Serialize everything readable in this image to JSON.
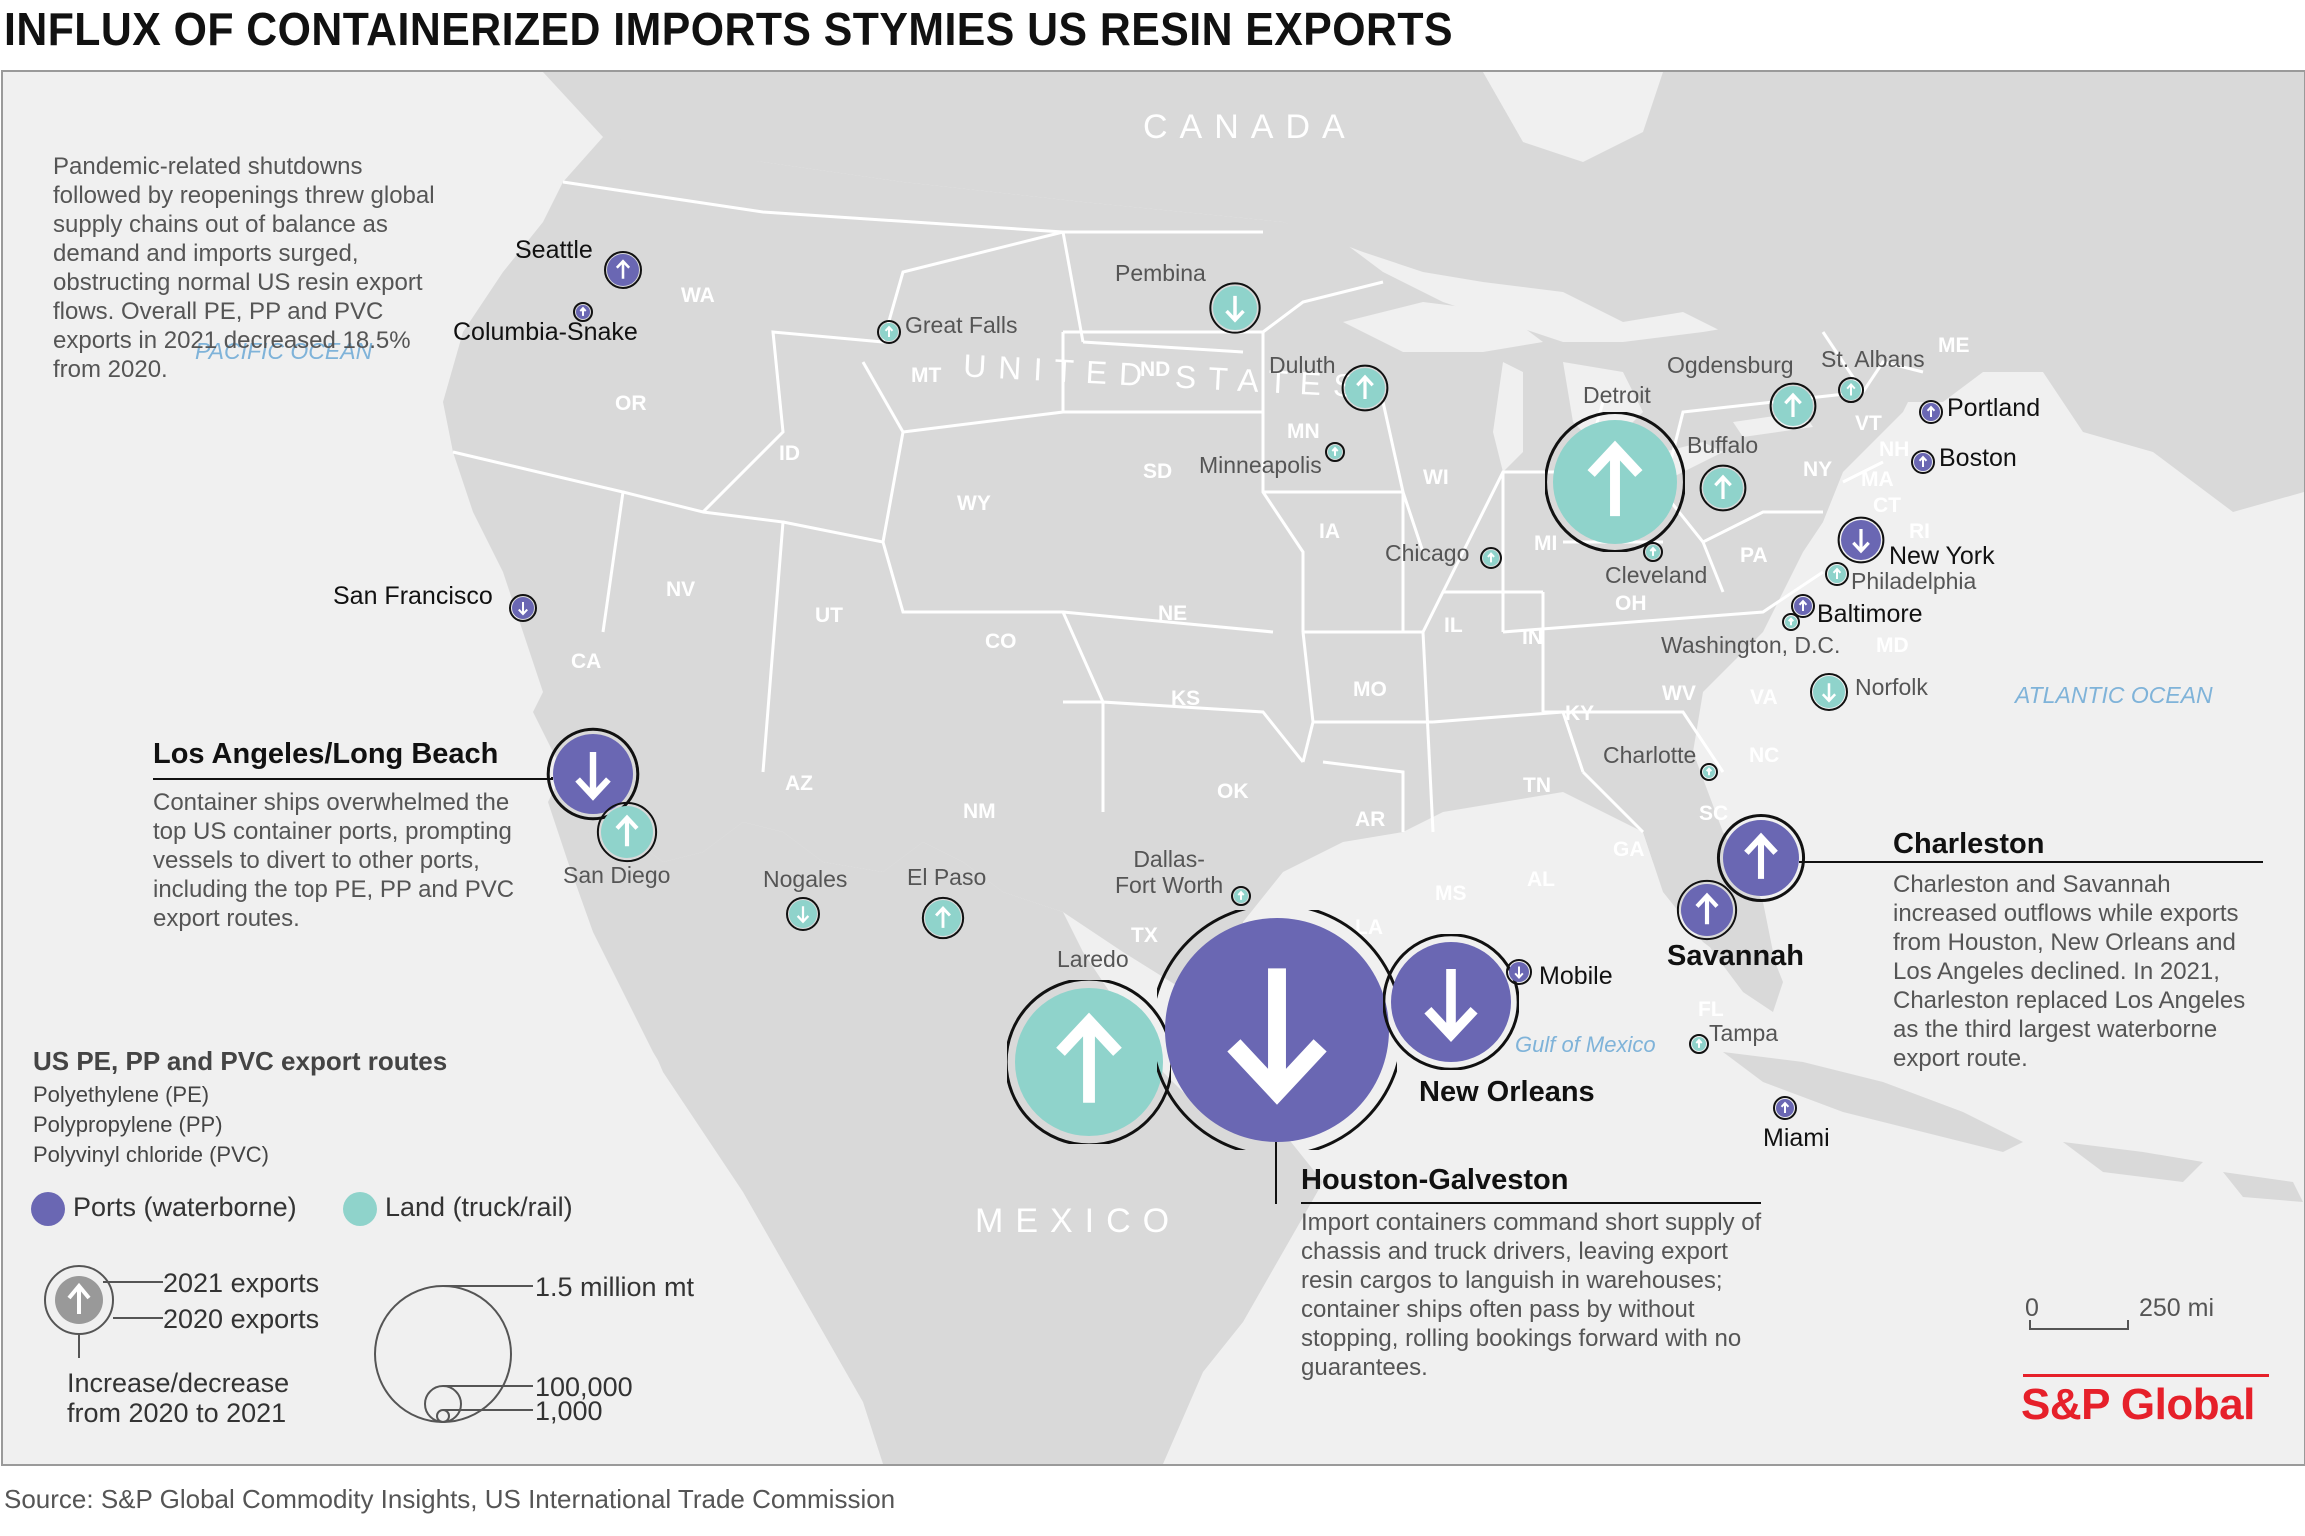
{
  "title": "INFLUX OF CONTAINERIZED IMPORTS STYMIES US RESIN EXPORTS",
  "source": "Source: S&P Global Commodity Insights, US International Trade Commission",
  "intro": "Pandemic-related shutdowns followed by reopenings threw global supply chains out of balance as demand and imports surged, obstructing normal US resin export flows. Overall PE, PP and PVC exports in 2021 decreased 18.5% from 2020.",
  "geo_labels": {
    "canada": "CANADA",
    "us": "UNITED STATES",
    "mexico": "MEXICO"
  },
  "oceans": {
    "pacific": "PACIFIC OCEAN",
    "atlantic": "ATLANTIC OCEAN",
    "gulf": "Gulf of Mexico"
  },
  "states": [
    "WA",
    "OR",
    "CA",
    "ID",
    "NV",
    "UT",
    "AZ",
    "MT",
    "WY",
    "CO",
    "NM",
    "ND",
    "SD",
    "NE",
    "KS",
    "OK",
    "TX",
    "MN",
    "IA",
    "MO",
    "AR",
    "LA",
    "WI",
    "IL",
    "MI",
    "IN",
    "OH",
    "KY",
    "TN",
    "MS",
    "AL",
    "GA",
    "FL",
    "SC",
    "NC",
    "VA",
    "WV",
    "PA",
    "NY",
    "ME",
    "VT",
    "NH",
    "MA",
    "CT",
    "RI",
    "MD"
  ],
  "callouts": {
    "la": {
      "title": "Los Angeles/Long Beach",
      "text": "Container ships overwhelmed the top US container ports, prompting vessels to divert to other ports, including the top PE, PP and PVC export routes."
    },
    "houston": {
      "title": "Houston-Galveston",
      "text": "Import containers command short supply of chassis and truck drivers, leaving export resin cargos to languish in warehouses; container ships often pass by without stopping, rolling bookings forward with no guarantees."
    },
    "charleston": {
      "title": "Charleston",
      "text": "Charleston and Savannah increased outflows while exports from Houston, New Orleans and Los Angeles declined. In 2021, Charleston replaced Los Angeles as the third largest waterborne export route."
    }
  },
  "routes": [
    {
      "name": "Seattle",
      "type": "port",
      "direction": "up"
    },
    {
      "name": "Columbia-Snake",
      "type": "port",
      "direction": "up"
    },
    {
      "name": "San Francisco",
      "type": "port",
      "direction": "down"
    },
    {
      "name": "Los Angeles/Long Beach",
      "type": "port",
      "direction": "down"
    },
    {
      "name": "San Diego",
      "type": "land",
      "direction": "up"
    },
    {
      "name": "Nogales",
      "type": "land",
      "direction": "down"
    },
    {
      "name": "El Paso",
      "type": "land",
      "direction": "up"
    },
    {
      "name": "Laredo",
      "type": "land",
      "direction": "up"
    },
    {
      "name": "Dallas-Fort Worth",
      "type": "land",
      "direction": "up"
    },
    {
      "name": "Houston-Galveston",
      "type": "port",
      "direction": "down"
    },
    {
      "name": "New Orleans",
      "type": "port",
      "direction": "down"
    },
    {
      "name": "Mobile",
      "type": "port",
      "direction": "down"
    },
    {
      "name": "Tampa",
      "type": "land",
      "direction": "up"
    },
    {
      "name": "Miami",
      "type": "port",
      "direction": "up"
    },
    {
      "name": "Savannah",
      "type": "port",
      "direction": "up"
    },
    {
      "name": "Charleston",
      "type": "port",
      "direction": "up"
    },
    {
      "name": "Charlotte",
      "type": "land",
      "direction": "up"
    },
    {
      "name": "Norfolk",
      "type": "land",
      "direction": "down"
    },
    {
      "name": "Washington, D.C.",
      "type": "land",
      "direction": "up"
    },
    {
      "name": "Baltimore",
      "type": "port",
      "direction": "up"
    },
    {
      "name": "Philadelphia",
      "type": "land",
      "direction": "up"
    },
    {
      "name": "New York",
      "type": "port",
      "direction": "down"
    },
    {
      "name": "Boston",
      "type": "port",
      "direction": "up"
    },
    {
      "name": "Portland",
      "type": "port",
      "direction": "up"
    },
    {
      "name": "St. Albans",
      "type": "land",
      "direction": "up"
    },
    {
      "name": "Ogdensburg",
      "type": "land",
      "direction": "up"
    },
    {
      "name": "Buffalo",
      "type": "land",
      "direction": "up"
    },
    {
      "name": "Detroit",
      "type": "land",
      "direction": "up"
    },
    {
      "name": "Cleveland",
      "type": "land",
      "direction": "up"
    },
    {
      "name": "Chicago",
      "type": "land",
      "direction": "up"
    },
    {
      "name": "Duluth",
      "type": "land",
      "direction": "up"
    },
    {
      "name": "Minneapolis",
      "type": "land",
      "direction": "up"
    },
    {
      "name": "Pembina",
      "type": "land",
      "direction": "down"
    },
    {
      "name": "Great Falls",
      "type": "land",
      "direction": "up"
    }
  ],
  "legend": {
    "title": "US PE, PP and PVC export routes",
    "items": [
      "Polyethylene (PE)",
      "Polypropylene (PP)",
      "Polyvinyl chloride (PVC)"
    ],
    "ports": "Ports (waterborne)",
    "land": "Land (truck/rail)",
    "exports_2021": "2021 exports",
    "exports_2020": "2020 exports",
    "change": "Increase/decrease from 2020 to 2021",
    "size_large": "1.5 million mt",
    "size_mid": "100,000",
    "size_small": "1,000"
  },
  "scale": {
    "zero": "0",
    "distance": "250 mi"
  },
  "colors": {
    "port": "#6a67b3",
    "land": "#8fd3cb",
    "land_area": "#d9d9d9",
    "border": "#ffffff",
    "brand": "#e6202a"
  },
  "brand": "S&P Global"
}
